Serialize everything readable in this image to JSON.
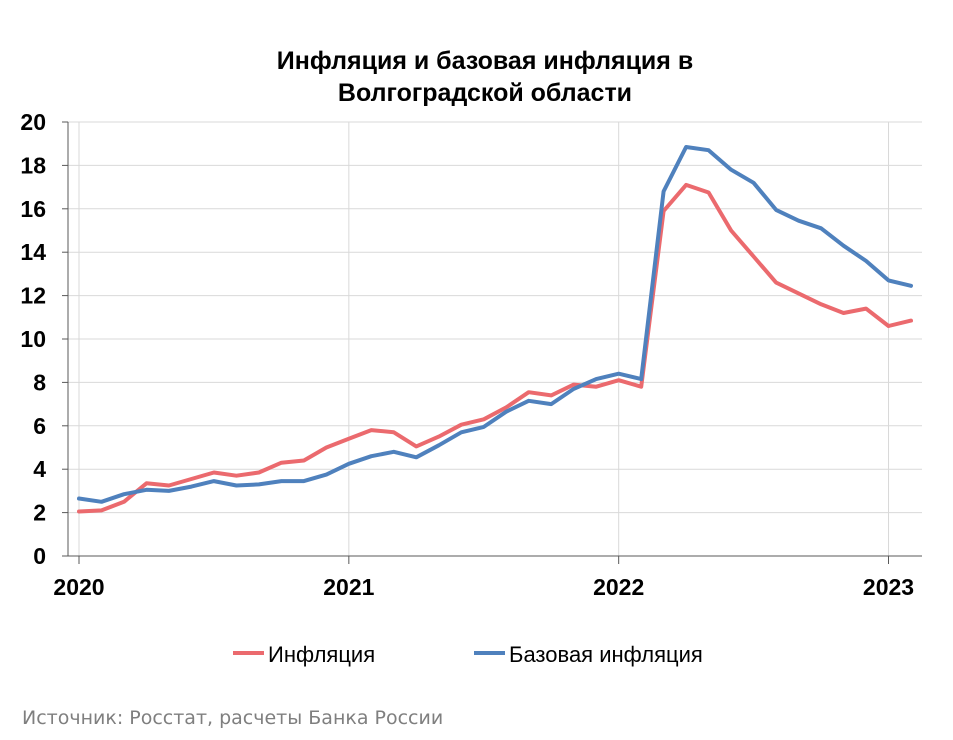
{
  "source_note": "Источник: Росстат, расчеты Банка России",
  "chart_data": {
    "type": "line",
    "title": [
      "Инфляция и базовая инфляция в",
      "Волгоградской области"
    ],
    "xlabel": "",
    "ylabel": "",
    "ylim": [
      0,
      20
    ],
    "y_ticks": [
      0,
      2,
      4,
      6,
      8,
      10,
      12,
      14,
      16,
      18,
      20
    ],
    "x_range": [
      "2020-01",
      "2023-02"
    ],
    "x_ticks": [
      "2020",
      "2021",
      "2022",
      "2023"
    ],
    "grid": true,
    "legend_position": "bottom",
    "x": [
      "2020-01",
      "2020-02",
      "2020-03",
      "2020-04",
      "2020-05",
      "2020-06",
      "2020-07",
      "2020-08",
      "2020-09",
      "2020-10",
      "2020-11",
      "2020-12",
      "2021-01",
      "2021-02",
      "2021-03",
      "2021-04",
      "2021-05",
      "2021-06",
      "2021-07",
      "2021-08",
      "2021-09",
      "2021-10",
      "2021-11",
      "2021-12",
      "2022-01",
      "2022-02",
      "2022-03",
      "2022-04",
      "2022-05",
      "2022-06",
      "2022-07",
      "2022-08",
      "2022-09",
      "2022-10",
      "2022-11",
      "2022-12",
      "2023-01",
      "2023-02"
    ],
    "series": [
      {
        "name": "Инфляция",
        "color": "#eb6a6e",
        "values": [
          2.05,
          2.1,
          2.5,
          3.35,
          3.25,
          3.55,
          3.85,
          3.7,
          3.85,
          4.3,
          4.4,
          5.0,
          5.4,
          5.8,
          5.7,
          5.05,
          5.5,
          6.05,
          6.3,
          6.85,
          7.55,
          7.4,
          7.9,
          7.8,
          8.1,
          7.8,
          15.9,
          17.1,
          16.75,
          15.0,
          13.8,
          12.6,
          12.1,
          11.6,
          11.2,
          11.4,
          10.6,
          10.85
        ]
      },
      {
        "name": "Базовая инфляция",
        "color": "#4f81bd",
        "values": [
          2.65,
          2.5,
          2.85,
          3.05,
          3.0,
          3.2,
          3.45,
          3.25,
          3.3,
          3.45,
          3.45,
          3.75,
          4.25,
          4.6,
          4.8,
          4.55,
          5.1,
          5.7,
          5.95,
          6.65,
          7.15,
          7.0,
          7.7,
          8.15,
          8.4,
          8.15,
          16.8,
          18.85,
          18.7,
          17.8,
          17.2,
          15.95,
          15.45,
          15.1,
          14.3,
          13.6,
          12.7,
          12.45
        ]
      }
    ]
  }
}
